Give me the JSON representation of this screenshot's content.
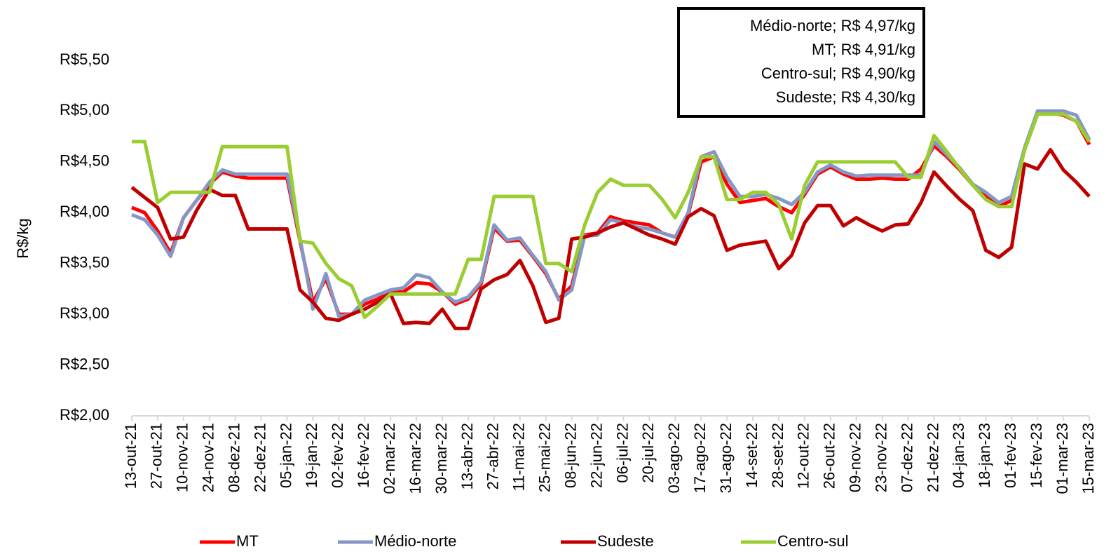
{
  "chart_data": {
    "type": "line",
    "y_label": "R$/kg",
    "annotations": [
      "Médio-norte; R$ 4,97/kg",
      "MT; R$ 4,91/kg",
      "Centro-sul; R$ 4,90/kg",
      "Sudeste; R$ 4,30/kg"
    ],
    "categories": [
      "13-out-21",
      null,
      "27-out-21",
      null,
      "10-nov-21",
      null,
      "24-nov-21",
      null,
      "08-dez-21",
      null,
      "22-dez-21",
      null,
      "05-jan-22",
      null,
      "19-jan-22",
      null,
      "02-fev-22",
      null,
      "16-fev-22",
      null,
      "02-mar-22",
      null,
      "16-mar-22",
      null,
      "30-mar-22",
      null,
      "13-abr-22",
      null,
      "27-abr-22",
      null,
      "11-mai-22",
      null,
      "25-mai-22",
      null,
      "08-jun-22",
      null,
      "22-jun-22",
      null,
      "06-jul-22",
      null,
      "20-jul-22",
      null,
      "03-ago-22",
      null,
      "17-ago-22",
      null,
      "31-ago-22",
      null,
      "14-set-22",
      null,
      "28-set-22",
      null,
      "12-out-22",
      null,
      "26-out-22",
      null,
      "09-nov-22",
      null,
      "23-nov-22",
      null,
      "07-dez-22",
      null,
      "21-dez-22",
      null,
      "04-jan-23",
      null,
      "18-jan-23",
      null,
      "01-fev-23",
      null,
      "15-fev-23",
      null,
      "01-mar-23",
      null,
      "15-mar-23"
    ],
    "series": [
      {
        "name": "MT",
        "color": "#ff0000",
        "values": [
          4.05,
          4.0,
          3.82,
          3.6,
          3.95,
          4.12,
          4.28,
          4.4,
          4.36,
          4.34,
          4.34,
          4.34,
          4.34,
          3.72,
          3.12,
          3.35,
          3.0,
          3.0,
          3.1,
          3.15,
          3.22,
          3.22,
          3.31,
          3.3,
          3.22,
          3.1,
          3.15,
          3.3,
          3.85,
          3.72,
          3.73,
          3.57,
          3.4,
          3.15,
          3.28,
          3.78,
          3.8,
          3.96,
          3.92,
          3.9,
          3.88,
          3.8,
          3.76,
          3.98,
          4.5,
          4.55,
          4.28,
          4.1,
          4.12,
          4.14,
          4.06,
          4.0,
          4.18,
          4.38,
          4.45,
          4.38,
          4.33,
          4.33,
          4.34,
          4.33,
          4.33,
          4.43,
          4.66,
          4.55,
          4.42,
          4.27,
          4.16,
          4.06,
          4.12,
          4.62,
          4.97,
          4.98,
          4.96,
          4.9,
          4.67
        ]
      },
      {
        "name": "Médio-norte",
        "color": "#8497c6",
        "values": [
          3.98,
          3.93,
          3.78,
          3.57,
          3.95,
          4.12,
          4.3,
          4.42,
          4.38,
          4.38,
          4.38,
          4.38,
          4.38,
          3.75,
          3.05,
          3.4,
          2.98,
          3.0,
          3.14,
          3.19,
          3.24,
          3.26,
          3.39,
          3.36,
          3.22,
          3.12,
          3.17,
          3.32,
          3.88,
          3.73,
          3.75,
          3.58,
          3.42,
          3.14,
          3.24,
          3.77,
          3.78,
          3.93,
          3.9,
          3.86,
          3.84,
          3.8,
          3.76,
          4.0,
          4.55,
          4.6,
          4.35,
          4.16,
          4.16,
          4.18,
          4.14,
          4.08,
          4.2,
          4.4,
          4.47,
          4.4,
          4.36,
          4.37,
          4.37,
          4.37,
          4.37,
          4.37,
          4.7,
          4.57,
          4.44,
          4.28,
          4.2,
          4.1,
          4.16,
          4.64,
          5.0,
          5.0,
          5.0,
          4.96,
          4.72
        ]
      },
      {
        "name": "Sudeste",
        "color": "#c00000",
        "values": [
          4.25,
          4.15,
          4.05,
          3.74,
          3.76,
          4.02,
          4.23,
          4.17,
          4.17,
          3.84,
          3.84,
          3.84,
          3.84,
          3.24,
          3.12,
          2.96,
          2.94,
          3.0,
          3.05,
          3.12,
          3.2,
          2.91,
          2.92,
          2.91,
          3.05,
          2.86,
          2.86,
          3.25,
          3.34,
          3.39,
          3.53,
          3.28,
          2.92,
          2.96,
          3.74,
          3.76,
          3.8,
          3.86,
          3.9,
          3.84,
          3.78,
          3.74,
          3.69,
          3.96,
          4.04,
          3.97,
          3.63,
          3.68,
          3.7,
          3.72,
          3.45,
          3.58,
          3.9,
          4.07,
          4.07,
          3.87,
          3.95,
          3.88,
          3.82,
          3.88,
          3.89,
          4.1,
          4.4,
          4.26,
          4.13,
          4.02,
          3.63,
          3.56,
          3.66,
          4.48,
          4.43,
          4.62,
          4.42,
          4.3,
          4.16
        ]
      },
      {
        "name": "Centro-sul",
        "color": "#9acd32",
        "values": [
          4.7,
          4.7,
          4.1,
          4.2,
          4.2,
          4.2,
          4.2,
          4.65,
          4.65,
          4.65,
          4.65,
          4.65,
          4.65,
          3.72,
          3.7,
          3.5,
          3.35,
          3.28,
          2.97,
          3.08,
          3.2,
          3.2,
          3.2,
          3.2,
          3.2,
          3.2,
          3.54,
          3.54,
          4.16,
          4.16,
          4.16,
          4.16,
          3.5,
          3.5,
          3.42,
          3.88,
          4.2,
          4.33,
          4.27,
          4.27,
          4.27,
          4.13,
          3.95,
          4.2,
          4.55,
          4.55,
          4.13,
          4.13,
          4.2,
          4.2,
          4.08,
          3.74,
          4.27,
          4.5,
          4.5,
          4.5,
          4.5,
          4.5,
          4.5,
          4.5,
          4.35,
          4.35,
          4.76,
          4.6,
          4.43,
          4.27,
          4.13,
          4.06,
          4.06,
          4.62,
          4.97,
          4.97,
          4.97,
          4.9,
          4.7
        ]
      }
    ],
    "ylim": [
      2.0,
      5.5
    ],
    "yticks": [
      {
        "value": 2.0,
        "label": "R$2,00"
      },
      {
        "value": 2.5,
        "label": "R$2,50"
      },
      {
        "value": 3.0,
        "label": "R$3,00"
      },
      {
        "value": 3.5,
        "label": "R$3,50"
      },
      {
        "value": 4.0,
        "label": "R$4,00"
      },
      {
        "value": 4.5,
        "label": "R$4,50"
      },
      {
        "value": 5.0,
        "label": "R$5,00"
      },
      {
        "value": 5.5,
        "label": "R$5,50"
      }
    ],
    "grid": false,
    "legend": "bottom"
  }
}
